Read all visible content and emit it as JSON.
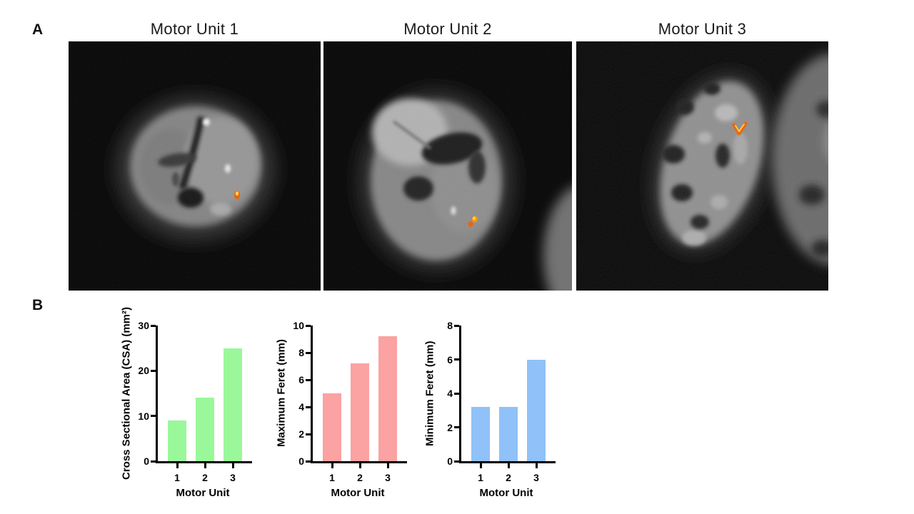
{
  "figure": {
    "panel_a_label": "A",
    "panel_b_label": "B",
    "mri_panels": [
      {
        "title": "Motor Unit 1"
      },
      {
        "title": "Motor Unit 2"
      },
      {
        "title": "Motor Unit 3"
      }
    ]
  },
  "colors": {
    "csa_bar": "#9AF89A",
    "max_feret_bar": "#FBA2A2",
    "min_feret_bar": "#90C1F8",
    "axis": "#000000",
    "motor_unit_marker": "#FF8C00"
  },
  "chart_data": [
    {
      "type": "bar",
      "categories": [
        "1",
        "2",
        "3"
      ],
      "values": [
        9,
        14,
        25
      ],
      "title": "",
      "xlabel": "Motor Unit",
      "ylabel": "Cross Sectional Area  (CSA) (mm²)",
      "ylim": [
        0,
        30
      ],
      "yticks": [
        0,
        10,
        20,
        30
      ],
      "bar_color": "#9AF89A",
      "grid": false,
      "legend": null
    },
    {
      "type": "bar",
      "categories": [
        "1",
        "2",
        "3"
      ],
      "values": [
        5,
        7.2,
        9.2
      ],
      "title": "",
      "xlabel": "Motor Unit",
      "ylabel": "Maximum Feret  (mm)",
      "ylim": [
        0,
        10
      ],
      "yticks": [
        0,
        2,
        4,
        6,
        8,
        10
      ],
      "bar_color": "#FBA2A2",
      "grid": false,
      "legend": null
    },
    {
      "type": "bar",
      "categories": [
        "1",
        "2",
        "3"
      ],
      "values": [
        3.2,
        3.2,
        6
      ],
      "title": "",
      "xlabel": "Motor Unit",
      "ylabel": "Minimum Feret  (mm)",
      "ylim": [
        0,
        8
      ],
      "yticks": [
        0,
        2,
        4,
        6,
        8
      ],
      "bar_color": "#90C1F8",
      "grid": false,
      "legend": null
    }
  ]
}
